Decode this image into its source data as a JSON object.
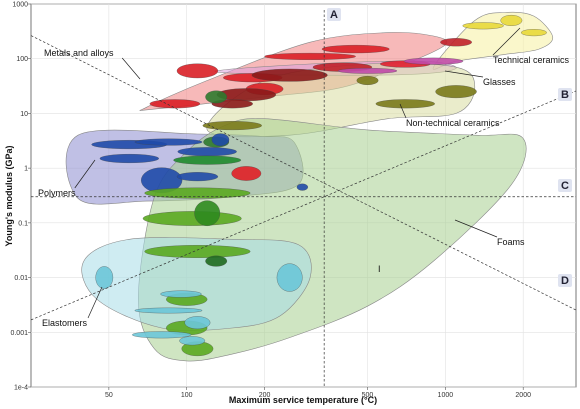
{
  "chart_data": {
    "type": "scatter",
    "title": "",
    "xlabel": "Maximum service temperature (°C)",
    "ylabel": "Young's modulus (GPa)",
    "x_scale": "log",
    "y_scale": "log",
    "xlim": [
      25,
      3200
    ],
    "ylim": [
      0.0001,
      1000
    ],
    "x_ticks": [
      {
        "v": 50,
        "label": "50"
      },
      {
        "v": 100,
        "label": "100"
      },
      {
        "v": 200,
        "label": "200"
      },
      {
        "v": 500,
        "label": "500"
      },
      {
        "v": 1000,
        "label": "1000"
      },
      {
        "v": 2000,
        "label": "2000"
      }
    ],
    "y_ticks": [
      {
        "v": 1000,
        "label": "1000"
      },
      {
        "v": 100,
        "label": "100"
      },
      {
        "v": 10,
        "label": "10"
      },
      {
        "v": 1,
        "label": "1"
      },
      {
        "v": 0.1,
        "label": "0.1"
      },
      {
        "v": 0.01,
        "label": "0.01"
      },
      {
        "v": 0.001,
        "label": "0.001"
      },
      {
        "v": 0.0001,
        "label": "1e-4"
      }
    ],
    "grid": true,
    "families": [
      {
        "name": "Metals and alloys",
        "color": "#f08080",
        "outline": [
          [
            70,
            13
          ],
          [
            120,
            40
          ],
          [
            300,
            200
          ],
          [
            600,
            300
          ],
          [
            900,
            260
          ],
          [
            1000,
            180
          ],
          [
            700,
            80
          ],
          [
            400,
            30
          ],
          [
            200,
            20
          ],
          [
            75,
            12
          ]
        ]
      },
      {
        "name": "Technical ceramics",
        "color": "#f5f0a0",
        "outline": [
          [
            900,
            70
          ],
          [
            1300,
            500
          ],
          [
            1700,
            700
          ],
          [
            2200,
            600
          ],
          [
            2600,
            250
          ],
          [
            2300,
            150
          ],
          [
            1700,
            120
          ],
          [
            1100,
            90
          ]
        ]
      },
      {
        "name": "Glasses",
        "color": "#dda0dd",
        "outline": [
          [
            130,
            60
          ],
          [
            300,
            80
          ],
          [
            800,
            90
          ],
          [
            1100,
            70
          ],
          [
            900,
            55
          ],
          [
            500,
            50
          ],
          [
            200,
            52
          ]
        ]
      },
      {
        "name": "Non-technical ceramics",
        "color": "#d8dca0",
        "outline": [
          [
            120,
            5
          ],
          [
            200,
            40
          ],
          [
            500,
            80
          ],
          [
            1100,
            70
          ],
          [
            1300,
            30
          ],
          [
            1100,
            10
          ],
          [
            600,
            8
          ],
          [
            250,
            4
          ]
        ]
      },
      {
        "name": "Polymers",
        "color": "#8c8cd0",
        "outline": [
          [
            38,
            0.28
          ],
          [
            38,
            4
          ],
          [
            110,
            4.2
          ],
          [
            195,
            3.8
          ],
          [
            260,
            3
          ],
          [
            270,
            0.5
          ],
          [
            150,
            0.3
          ],
          [
            70,
            0.25
          ]
        ]
      },
      {
        "name": "Foams",
        "color": "#a8d090",
        "outline": [
          [
            65,
            0.004
          ],
          [
            75,
            0.3
          ],
          [
            100,
            2
          ],
          [
            140,
            6
          ],
          [
            200,
            8
          ],
          [
            500,
            5
          ],
          [
            1300,
            4
          ],
          [
            2000,
            3.5
          ],
          [
            1800,
            0.5
          ],
          [
            900,
            0.02
          ],
          [
            500,
            0.003
          ],
          [
            250,
            0.0008
          ],
          [
            150,
            0.0004
          ],
          [
            100,
            0.0003
          ],
          [
            75,
            0.0005
          ]
        ]
      },
      {
        "name": "Elastomers",
        "color": "#a8dce8",
        "outline": [
          [
            40,
            0.02
          ],
          [
            60,
            0.05
          ],
          [
            150,
            0.05
          ],
          [
            270,
            0.04
          ],
          [
            300,
            0.01
          ],
          [
            230,
            0.002
          ],
          [
            150,
            0.0012
          ],
          [
            80,
            0.0012
          ],
          [
            45,
            0.004
          ]
        ]
      }
    ],
    "materials": [
      {
        "x": 200,
        "y": 28,
        "rx": 1.18,
        "ry": 1.28,
        "color": "#d91f26"
      },
      {
        "x": 110,
        "y": 60,
        "rx": 1.2,
        "ry": 1.35,
        "color": "#d91f26"
      },
      {
        "x": 180,
        "y": 45,
        "rx": 1.3,
        "ry": 1.2,
        "color": "#d91f26"
      },
      {
        "x": 400,
        "y": 70,
        "rx": 1.3,
        "ry": 1.2,
        "color": "#c0202a"
      },
      {
        "x": 450,
        "y": 150,
        "rx": 1.35,
        "ry": 1.18,
        "color": "#d91f26"
      },
      {
        "x": 700,
        "y": 80,
        "rx": 1.25,
        "ry": 1.15,
        "color": "#e02030"
      },
      {
        "x": 300,
        "y": 110,
        "rx": 1.5,
        "ry": 1.15,
        "color": "#d91f26"
      },
      {
        "x": 90,
        "y": 15,
        "rx": 1.25,
        "ry": 1.2,
        "color": "#d91f26"
      },
      {
        "x": 170,
        "y": 22,
        "rx": 1.3,
        "ry": 1.3,
        "color": "#8b1a1a"
      },
      {
        "x": 150,
        "y": 15,
        "rx": 1.2,
        "ry": 1.2,
        "color": "#8b1a1a"
      },
      {
        "x": 250,
        "y": 50,
        "rx": 1.4,
        "ry": 1.3,
        "color": "#8b1a1a"
      },
      {
        "x": 1100,
        "y": 200,
        "rx": 1.15,
        "ry": 1.18,
        "color": "#c0202a"
      },
      {
        "x": 1400,
        "y": 400,
        "rx": 1.2,
        "ry": 1.15,
        "color": "#e8d83a"
      },
      {
        "x": 1800,
        "y": 500,
        "rx": 1.1,
        "ry": 1.25,
        "color": "#e8d83a"
      },
      {
        "x": 2200,
        "y": 300,
        "rx": 1.12,
        "ry": 1.15,
        "color": "#e8d83a"
      },
      {
        "x": 900,
        "y": 90,
        "rx": 1.3,
        "ry": 1.15,
        "color": "#c04aa8"
      },
      {
        "x": 500,
        "y": 60,
        "rx": 1.3,
        "ry": 1.12,
        "color": "#c04aa8"
      },
      {
        "x": 1100,
        "y": 25,
        "rx": 1.2,
        "ry": 1.3,
        "color": "#7a7a1a"
      },
      {
        "x": 700,
        "y": 15,
        "rx": 1.3,
        "ry": 1.2,
        "color": "#7a7a1a"
      },
      {
        "x": 500,
        "y": 40,
        "rx": 1.1,
        "ry": 1.2,
        "color": "#7a7a1a"
      },
      {
        "x": 150,
        "y": 6,
        "rx": 1.3,
        "ry": 1.2,
        "color": "#7a7a1a"
      },
      {
        "x": 130,
        "y": 3,
        "rx": 1.12,
        "ry": 1.25,
        "color": "#2d7a2d"
      },
      {
        "x": 130,
        "y": 20,
        "rx": 1.1,
        "ry": 1.3,
        "color": "#2d7a2d"
      },
      {
        "x": 60,
        "y": 2.7,
        "rx": 1.4,
        "ry": 1.2,
        "color": "#1f4aa8"
      },
      {
        "x": 85,
        "y": 3,
        "rx": 1.35,
        "ry": 1.15,
        "color": "#1f4aa8"
      },
      {
        "x": 60,
        "y": 1.5,
        "rx": 1.3,
        "ry": 1.2,
        "color": "#1f4aa8"
      },
      {
        "x": 120,
        "y": 2,
        "rx": 1.3,
        "ry": 1.2,
        "color": "#1f4aa8"
      },
      {
        "x": 80,
        "y": 0.6,
        "rx": 1.2,
        "ry": 1.7,
        "color": "#1f4aa8"
      },
      {
        "x": 110,
        "y": 0.7,
        "rx": 1.2,
        "ry": 1.2,
        "color": "#1f4aa8"
      },
      {
        "x": 135,
        "y": 3.3,
        "rx": 1.08,
        "ry": 1.3,
        "color": "#1f4aa8"
      },
      {
        "x": 170,
        "y": 0.8,
        "rx": 1.14,
        "ry": 1.35,
        "color": "#e01f26"
      },
      {
        "x": 280,
        "y": 0.45,
        "rx": 1.05,
        "ry": 1.15,
        "color": "#1f4aa8"
      },
      {
        "x": 120,
        "y": 1.4,
        "rx": 1.35,
        "ry": 1.2,
        "color": "#1f8a2d"
      },
      {
        "x": 110,
        "y": 0.35,
        "rx": 1.6,
        "ry": 1.25,
        "color": "#5aa820"
      },
      {
        "x": 105,
        "y": 0.12,
        "rx": 1.55,
        "ry": 1.35,
        "color": "#5aa820"
      },
      {
        "x": 110,
        "y": 0.03,
        "rx": 1.6,
        "ry": 1.3,
        "color": "#5aa820"
      },
      {
        "x": 120,
        "y": 0.15,
        "rx": 1.12,
        "ry": 1.7,
        "color": "#2d8a1f"
      },
      {
        "x": 130,
        "y": 0.02,
        "rx": 1.1,
        "ry": 1.25,
        "color": "#1f6a1f"
      },
      {
        "x": 100,
        "y": 0.004,
        "rx": 1.2,
        "ry": 1.3,
        "color": "#5aa820"
      },
      {
        "x": 100,
        "y": 0.0012,
        "rx": 1.2,
        "ry": 1.35,
        "color": "#5aa820"
      },
      {
        "x": 110,
        "y": 0.0005,
        "rx": 1.15,
        "ry": 1.35,
        "color": "#5aa820"
      },
      {
        "x": 48,
        "y": 0.01,
        "rx": 1.08,
        "ry": 1.6,
        "color": "#6cc6d8"
      },
      {
        "x": 250,
        "y": 0.01,
        "rx": 1.12,
        "ry": 1.8,
        "color": "#6cc6d8"
      },
      {
        "x": 95,
        "y": 0.005,
        "rx": 1.2,
        "ry": 1.15,
        "color": "#6cc6d8"
      },
      {
        "x": 85,
        "y": 0.0025,
        "rx": 1.35,
        "ry": 1.12,
        "color": "#6cc6d8"
      },
      {
        "x": 110,
        "y": 0.0015,
        "rx": 1.12,
        "ry": 1.3,
        "color": "#6cc6d8"
      },
      {
        "x": 80,
        "y": 0.0009,
        "rx": 1.3,
        "ry": 1.15,
        "color": "#6cc6d8"
      },
      {
        "x": 105,
        "y": 0.0007,
        "rx": 1.12,
        "ry": 1.2,
        "color": "#6cc6d8"
      }
    ],
    "labels": [
      {
        "text": "Metals and alloys",
        "tx": 44,
        "ty": 56,
        "ax": 140,
        "ay": 79
      },
      {
        "text": "Technical ceramics",
        "tx": 493,
        "ty": 63,
        "ax": 520,
        "ay": 28
      },
      {
        "text": "Glasses",
        "tx": 483,
        "ty": 85,
        "ax": 445,
        "ay": 71
      },
      {
        "text": "Non-technical ceramics",
        "tx": 406,
        "ty": 126,
        "ax": 400,
        "ay": 104
      },
      {
        "text": "Polymers",
        "tx": 38,
        "ty": 196,
        "ax": 95,
        "ay": 160
      },
      {
        "text": "Foams",
        "tx": 497,
        "ty": 245,
        "ax": 455,
        "ay": 220
      },
      {
        "text": "Elastomers",
        "tx": 42,
        "ty": 326,
        "ax": 102,
        "ay": 287
      },
      {
        "text": "I",
        "tx": 378,
        "ty": 272,
        "ax": null,
        "ay": null
      }
    ],
    "guides": [
      {
        "name": "A",
        "type": "vertical",
        "x": 340,
        "lx": 329,
        "ly": 18
      },
      {
        "name": "B",
        "type": "diagonal-up",
        "lx": 560,
        "ly": 98
      },
      {
        "name": "C",
        "type": "horizontal",
        "y": 0.3,
        "lx": 560,
        "ly": 189
      },
      {
        "name": "D",
        "type": "diagonal-down",
        "lx": 560,
        "ly": 284
      }
    ]
  }
}
